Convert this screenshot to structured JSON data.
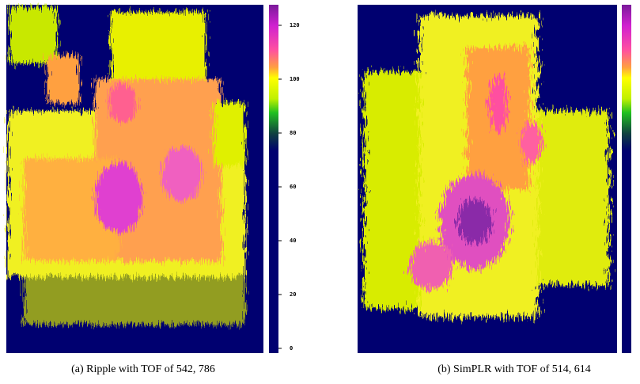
{
  "figures": [
    {
      "caption": "(a) Ripple with TOF of 542, 786",
      "colorbar_ticks": [
        "0",
        "20",
        "40",
        "60",
        "80",
        "100",
        "120"
      ]
    },
    {
      "caption": "(b) SimPLR with TOF of 514, 614"
    }
  ]
}
